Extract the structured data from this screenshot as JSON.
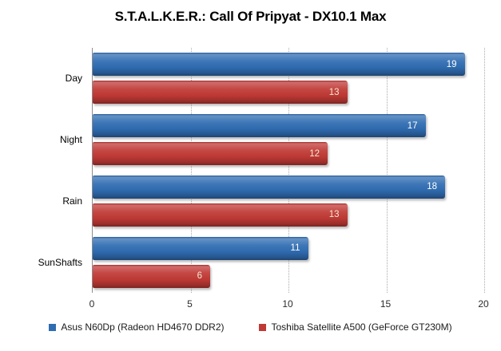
{
  "chart_data": {
    "type": "bar",
    "orientation": "horizontal",
    "title": "S.T.A.L.K.E.R.: Call Of Pripyat - DX10.1 Max",
    "categories": [
      "Day",
      "Night",
      "Rain",
      "SunShafts"
    ],
    "series": [
      {
        "name": "Asus N60Dp (Radeon HD4670 DDR2)",
        "color": "#2f6cb2",
        "value_label_color": "#ffffff",
        "values": [
          19,
          17,
          18,
          11
        ]
      },
      {
        "name": "Toshiba Satellite  A500 (GeForce GT230M)",
        "color": "#c03935",
        "value_label_color": "#f3e7d3",
        "values": [
          13,
          12,
          13,
          6
        ]
      }
    ],
    "xlabel": "",
    "ylabel": "",
    "xlim": [
      0,
      20
    ],
    "xticks": [
      0,
      5,
      10,
      15,
      20
    ],
    "grid": "vertical-dotted",
    "legend_position": "bottom",
    "axis_color": "#8c8c8c",
    "gridline_color": "#ababab",
    "background_color": "#ffffff"
  }
}
